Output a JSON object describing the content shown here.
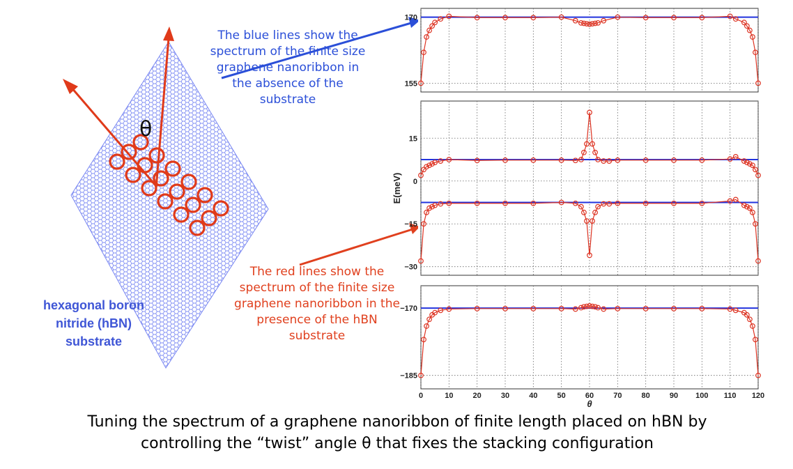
{
  "annotations": {
    "blue_note": "The blue lines show the spectrum of the finite size graphene nanoribbon in the absence of the substrate",
    "red_note": "The red lines show the spectrum of the finite size graphene nanoribbon in the presence of the hBN substrate",
    "substrate_label": "hexagonal boron nitride (hBN) substrate",
    "angle_symbol": "θ",
    "caption_line1": "Tuning the spectrum of a graphene nanoribbon of finite length placed on hBN by",
    "caption_line2": "controlling the “twist” angle θ that fixes the stacking configuration"
  },
  "colors": {
    "blue": "#2233dd",
    "red": "#dd3322",
    "lattice": "#5a6cf0",
    "blue_text": "#2b4fd8",
    "red_text": "#e0401e"
  },
  "chart_data": {
    "type": "line",
    "xlabel": "θ",
    "ylabel": "E(meV)",
    "x_ticks": [
      0,
      10,
      20,
      30,
      40,
      50,
      60,
      70,
      80,
      90,
      100,
      110,
      120
    ],
    "xlim": [
      0,
      120
    ],
    "grid": true,
    "panels": [
      {
        "ylim": [
          153,
          172
        ],
        "y_ticks": [
          155,
          170
        ],
        "blue_level": 170,
        "red_series": {
          "x": [
            0,
            1,
            2,
            3,
            4,
            5,
            7,
            10,
            20,
            30,
            40,
            50,
            55,
            57,
            58,
            59,
            60,
            61,
            62,
            63,
            65,
            70,
            80,
            90,
            100,
            110,
            112,
            115,
            116,
            117,
            118,
            119,
            120
          ],
          "y": [
            155,
            162,
            165.5,
            167,
            168,
            168.8,
            169.6,
            170.2,
            169.9,
            169.9,
            169.9,
            170,
            169.2,
            168.7,
            168.6,
            168.5,
            168.4,
            168.5,
            168.6,
            168.7,
            169.2,
            170,
            169.9,
            169.9,
            169.9,
            170.2,
            169.6,
            168.8,
            168,
            167,
            165.5,
            162,
            155
          ]
        }
      },
      {
        "ylim": [
          -33,
          28
        ],
        "y_ticks": [
          -30,
          -15,
          0,
          15
        ],
        "blue_levels": [
          7.5,
          -7.5
        ],
        "red_series": [
          {
            "x": [
              0,
              1,
              2,
              3,
              4,
              5,
              7,
              10,
              20,
              30,
              40,
              50,
              55,
              57,
              58,
              59,
              60,
              61,
              62,
              63,
              65,
              67,
              70,
              80,
              90,
              100,
              110,
              112,
              115,
              116,
              117,
              118,
              119,
              120
            ],
            "y": [
              2,
              4,
              5,
              5.5,
              6,
              6.5,
              7,
              7.5,
              7.2,
              7.3,
              7.3,
              7.3,
              7.2,
              7.5,
              10,
              13,
              24,
              13,
              10,
              7.5,
              7,
              7,
              7.3,
              7.3,
              7.3,
              7.3,
              7.7,
              8.5,
              7,
              6.5,
              6,
              5.5,
              4,
              2
            ]
          },
          {
            "x": [
              0,
              1,
              2,
              3,
              4,
              5,
              7,
              10,
              20,
              30,
              40,
              50,
              55,
              57,
              58,
              59,
              60,
              61,
              62,
              63,
              65,
              67,
              70,
              80,
              90,
              100,
              110,
              112,
              115,
              116,
              117,
              118,
              119,
              120
            ],
            "y": [
              -28,
              -15,
              -11,
              -9.5,
              -9,
              -8.5,
              -8,
              -7.8,
              -7.8,
              -7.8,
              -7.8,
              -7.5,
              -7.8,
              -9,
              -11,
              -14,
              -26,
              -14,
              -11,
              -9,
              -8,
              -8,
              -7.8,
              -7.8,
              -7.8,
              -7.8,
              -7,
              -6.5,
              -8.5,
              -9,
              -9.5,
              -11,
              -15,
              -28
            ]
          }
        ]
      },
      {
        "ylim": [
          -188,
          -165
        ],
        "y_ticks": [
          -185,
          -170
        ],
        "blue_level": -170,
        "red_series": {
          "x": [
            0,
            1,
            2,
            3,
            4,
            5,
            7,
            10,
            20,
            30,
            40,
            50,
            55,
            57,
            58,
            59,
            60,
            61,
            62,
            63,
            65,
            70,
            80,
            90,
            100,
            110,
            112,
            115,
            116,
            117,
            118,
            119,
            120
          ],
          "y": [
            -185,
            -177,
            -174,
            -172.5,
            -171.5,
            -171,
            -170.5,
            -170.2,
            -170.1,
            -170.1,
            -170.1,
            -170.1,
            -170.2,
            -169.9,
            -169.7,
            -169.6,
            -169.5,
            -169.6,
            -169.7,
            -169.9,
            -170.2,
            -170.1,
            -170.1,
            -170.1,
            -170.1,
            -170.2,
            -170.5,
            -171,
            -171.5,
            -172.5,
            -174,
            -177,
            -185
          ]
        }
      }
    ]
  }
}
